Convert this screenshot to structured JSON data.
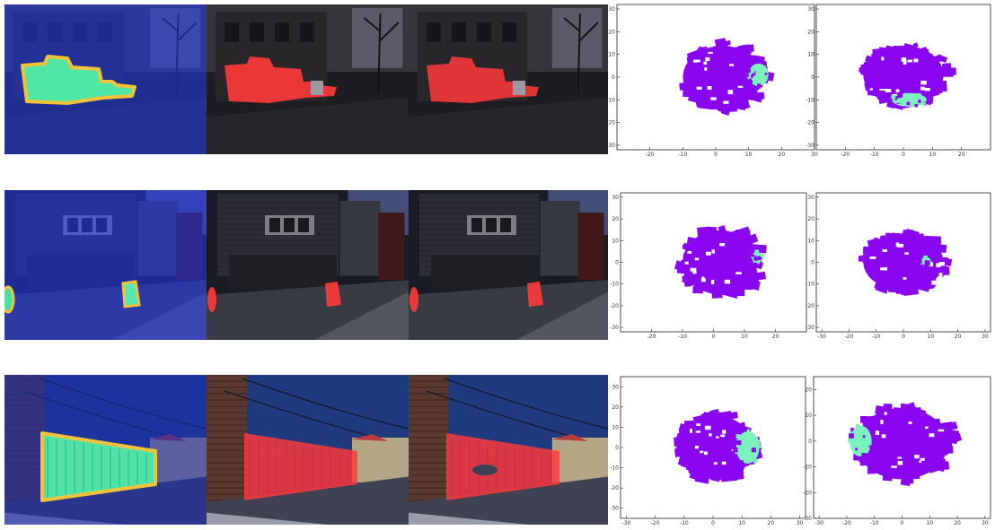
{
  "figure": {
    "columns": [
      "heatmap-overlay",
      "prediction-mask",
      "ground-truth-mask",
      "tsne-embedding-a",
      "tsne-embedding-b"
    ]
  },
  "colors": {
    "mask_red": "#ff3b3b",
    "heat_blue": "#1a2bb8",
    "heat_green": "#45e6a8",
    "cluster_purple": "#8a05f0",
    "cluster_aqua": "#7cf3bf",
    "photo_dark": "#2c2c34"
  },
  "scenes": [
    {
      "id": "sofa-street"
    },
    {
      "id": "sign-driveway"
    },
    {
      "id": "fence-sidewalk"
    }
  ],
  "plots": [
    {
      "row": 0,
      "col": 0,
      "x_ticks": [
        "-20",
        "-10",
        "0",
        "10",
        "20",
        "30"
      ],
      "y_ticks": [
        "30",
        "20",
        "10",
        "0",
        "-10",
        "-20",
        "-30"
      ],
      "x_range": [
        -30,
        30
      ],
      "y_range": [
        -32,
        32
      ],
      "main_cluster": {
        "cx": 2,
        "cy": 0,
        "rx": 13,
        "ry": 15
      },
      "minor_cluster": {
        "cx": 13,
        "cy": 1,
        "rx": 3,
        "ry": 5
      }
    },
    {
      "row": 0,
      "col": 1,
      "x_ticks": [
        "-20",
        "-10",
        "0",
        "10",
        "20"
      ],
      "y_ticks": [
        "30",
        "20",
        "10",
        "0",
        "-10",
        "-20",
        "-30"
      ],
      "x_range": [
        -30,
        30
      ],
      "y_range": [
        -32,
        32
      ],
      "main_cluster": {
        "cx": 0,
        "cy": 1,
        "rx": 15,
        "ry": 14
      },
      "minor_cluster": {
        "cx": 2,
        "cy": -10,
        "rx": 6,
        "ry": 3
      }
    },
    {
      "row": 1,
      "col": 0,
      "x_ticks": [
        "-20",
        "-10",
        "0",
        "10",
        "20"
      ],
      "y_ticks": [
        "30",
        "20",
        "10",
        "0",
        "-10",
        "-20",
        "-30"
      ],
      "x_range": [
        -30,
        30
      ],
      "y_range": [
        -32,
        32
      ],
      "main_cluster": {
        "cx": 2,
        "cy": 0,
        "rx": 13,
        "ry": 16
      },
      "minor_cluster": {
        "cx": 14,
        "cy": 2,
        "rx": 1.5,
        "ry": 3
      }
    },
    {
      "row": 1,
      "col": 1,
      "x_ticks": [
        "-30",
        "-20",
        "-10",
        "0",
        "10",
        "20",
        "30"
      ],
      "y_ticks": [
        "30",
        "20",
        "10",
        "0",
        "-10",
        "-20",
        "-30"
      ],
      "x_range": [
        -32,
        32
      ],
      "y_range": [
        -32,
        32
      ],
      "main_cluster": {
        "cx": 0,
        "cy": 0,
        "rx": 16,
        "ry": 14
      },
      "minor_cluster": {
        "cx": 8,
        "cy": 0,
        "rx": 2,
        "ry": 2
      }
    },
    {
      "row": 2,
      "col": 0,
      "x_ticks": [
        "-30",
        "-20",
        "-10",
        "0",
        "10",
        "20",
        "30"
      ],
      "y_ticks": [
        "30",
        "20",
        "10",
        "0",
        "-10",
        "-20",
        "-30"
      ],
      "x_range": [
        -32,
        32
      ],
      "y_range": [
        -35,
        35
      ],
      "main_cluster": {
        "cx": 1,
        "cy": 0,
        "rx": 14,
        "ry": 17
      },
      "minor_cluster": {
        "cx": 12,
        "cy": 0,
        "rx": 4,
        "ry": 8
      }
    },
    {
      "row": 2,
      "col": 1,
      "x_ticks": [
        "-30",
        "-20",
        "-10",
        "0",
        "10",
        "20",
        "30"
      ],
      "y_ticks": [
        "20",
        "10",
        "0",
        "-10",
        "-20",
        "-30"
      ],
      "x_range": [
        -32,
        32
      ],
      "y_range": [
        -30,
        25
      ],
      "main_cluster": {
        "cx": 0,
        "cy": -1,
        "rx": 18,
        "ry": 15
      },
      "minor_cluster": {
        "cx": -15,
        "cy": 0,
        "rx": 4,
        "ry": 6
      }
    }
  ]
}
